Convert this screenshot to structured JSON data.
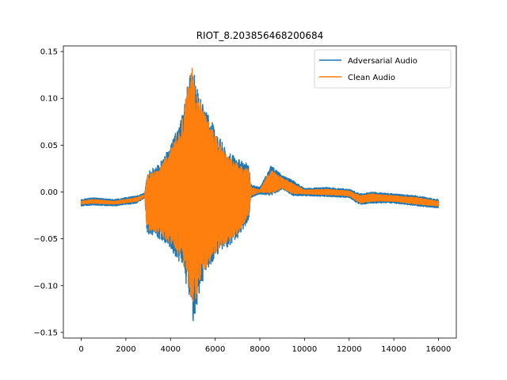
{
  "chart_data": {
    "type": "line",
    "title": "RIOT_8.203856468200684",
    "xlabel": "",
    "ylabel": "",
    "xlim": [
      -800,
      16800
    ],
    "ylim": [
      -0.156,
      0.156
    ],
    "x_ticks": [
      0,
      2000,
      4000,
      6000,
      8000,
      10000,
      12000,
      14000,
      16000
    ],
    "y_ticks": [
      -0.15,
      -0.1,
      -0.05,
      0.0,
      0.05,
      0.1,
      0.15
    ],
    "x_tick_labels": [
      "0",
      "2000",
      "4000",
      "6000",
      "8000",
      "10000",
      "12000",
      "14000",
      "16000"
    ],
    "y_tick_labels": [
      "−0.15",
      "−0.10",
      "−0.05",
      "0.00",
      "0.05",
      "0.10",
      "0.15"
    ],
    "grid": false,
    "legend_position": "top-right",
    "series": [
      {
        "name": "Adversarial Audio",
        "color": "#1f77b4",
        "envelope": {
          "x": [
            0,
            500,
            1500,
            2500,
            2850,
            2950,
            3500,
            4000,
            4500,
            4800,
            5000,
            5200,
            5500,
            6000,
            6500,
            7000,
            7500,
            7600,
            8000,
            8500,
            9000,
            9500,
            10000,
            11000,
            12000,
            12500,
            13000,
            14000,
            15000,
            16000
          ],
          "upper": [
            -0.008,
            -0.006,
            -0.008,
            -0.004,
            -0.001,
            0.022,
            0.03,
            0.05,
            0.08,
            0.12,
            0.14,
            0.11,
            0.09,
            0.07,
            0.045,
            0.035,
            0.03,
            0.008,
            0.005,
            0.028,
            0.018,
            0.012,
            0.004,
            0.005,
            0.003,
            -0.002,
            0.0,
            -0.002,
            -0.004,
            -0.008
          ],
          "lower": [
            -0.015,
            -0.014,
            -0.015,
            -0.012,
            -0.006,
            -0.045,
            -0.05,
            -0.06,
            -0.08,
            -0.11,
            -0.142,
            -0.12,
            -0.09,
            -0.07,
            -0.06,
            -0.05,
            -0.03,
            -0.006,
            -0.002,
            -0.004,
            0.003,
            -0.004,
            -0.004,
            -0.005,
            -0.006,
            -0.014,
            -0.012,
            -0.012,
            -0.015,
            -0.017
          ]
        }
      },
      {
        "name": "Clean Audio",
        "color": "#ff7f0e",
        "envelope": {
          "x": [
            0,
            500,
            1500,
            2500,
            2850,
            2950,
            3500,
            4000,
            4500,
            4800,
            5000,
            5200,
            5500,
            6000,
            6500,
            7000,
            7500,
            7600,
            8000,
            8500,
            9000,
            9500,
            10000,
            11000,
            12000,
            12500,
            13000,
            14000,
            15000,
            16000
          ],
          "upper": [
            -0.01,
            -0.008,
            -0.01,
            -0.006,
            -0.003,
            0.018,
            0.026,
            0.045,
            0.075,
            0.115,
            0.136,
            0.105,
            0.085,
            0.065,
            0.04,
            0.03,
            0.025,
            0.005,
            0.002,
            0.024,
            0.015,
            0.009,
            0.002,
            0.003,
            0.001,
            -0.004,
            -0.002,
            -0.004,
            -0.006,
            -0.01
          ],
          "lower": [
            -0.013,
            -0.012,
            -0.013,
            -0.01,
            -0.005,
            -0.04,
            -0.045,
            -0.055,
            -0.075,
            -0.1,
            -0.125,
            -0.11,
            -0.085,
            -0.065,
            -0.055,
            -0.045,
            -0.025,
            -0.004,
            0.0,
            -0.002,
            0.004,
            -0.002,
            -0.002,
            -0.003,
            -0.004,
            -0.012,
            -0.01,
            -0.01,
            -0.013,
            -0.015
          ]
        }
      }
    ]
  }
}
